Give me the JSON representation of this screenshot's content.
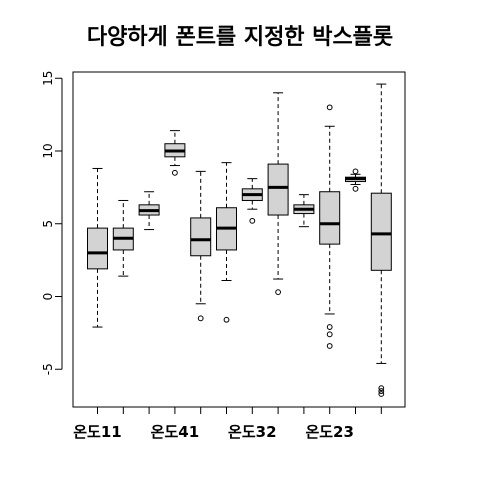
{
  "chart_data": {
    "type": "boxplot",
    "title": "다양하게 폰트를 지정한 박스플롯",
    "xlabel": "",
    "ylabel": "",
    "ylim": [
      -7.5,
      15.5
    ],
    "yticks": [
      -5,
      0,
      5,
      10,
      15
    ],
    "grid": false,
    "legend": "none",
    "colors": {
      "box_fill": "#d3d3d3",
      "stroke": "#000000",
      "background": "#ffffff"
    },
    "categories": [
      "온도11",
      "",
      "",
      "온도41",
      "",
      "",
      "온도32",
      "",
      "",
      "온도23",
      "",
      ""
    ],
    "boxes": [
      {
        "min": -2.1,
        "q1": 1.9,
        "median": 3.0,
        "q3": 4.7,
        "max": 8.8,
        "outliers": []
      },
      {
        "min": 1.4,
        "q1": 3.2,
        "median": 4.0,
        "q3": 4.7,
        "max": 6.6,
        "outliers": []
      },
      {
        "min": 4.6,
        "q1": 5.6,
        "median": 5.9,
        "q3": 6.3,
        "max": 7.2,
        "outliers": []
      },
      {
        "min": 9.0,
        "q1": 9.6,
        "median": 10.0,
        "q3": 10.5,
        "max": 11.4,
        "outliers": [
          8.5
        ]
      },
      {
        "min": -0.5,
        "q1": 2.8,
        "median": 3.9,
        "q3": 5.4,
        "max": 8.6,
        "outliers": [
          -1.5
        ]
      },
      {
        "min": 1.1,
        "q1": 3.2,
        "median": 4.7,
        "q3": 6.1,
        "max": 9.2,
        "outliers": [
          -1.6
        ]
      },
      {
        "min": 6.0,
        "q1": 6.6,
        "median": 7.0,
        "q3": 7.4,
        "max": 8.1,
        "outliers": [
          5.2
        ]
      },
      {
        "min": 1.2,
        "q1": 5.6,
        "median": 7.5,
        "q3": 9.1,
        "max": 14.0,
        "outliers": [
          0.3
        ]
      },
      {
        "min": 4.8,
        "q1": 5.7,
        "median": 6.0,
        "q3": 6.3,
        "max": 7.0,
        "outliers": []
      },
      {
        "min": -1.2,
        "q1": 3.6,
        "median": 5.0,
        "q3": 7.2,
        "max": 11.7,
        "outliers": [
          13.0,
          -2.1,
          -2.6,
          -3.4
        ]
      },
      {
        "min": 7.7,
        "q1": 7.9,
        "median": 8.1,
        "q3": 8.2,
        "max": 8.4,
        "outliers": [
          8.6,
          7.4
        ]
      },
      {
        "min": -4.6,
        "q1": 1.8,
        "median": 4.3,
        "q3": 7.1,
        "max": 14.6,
        "outliers": [
          -6.3,
          -6.5,
          -6.7
        ]
      }
    ]
  }
}
